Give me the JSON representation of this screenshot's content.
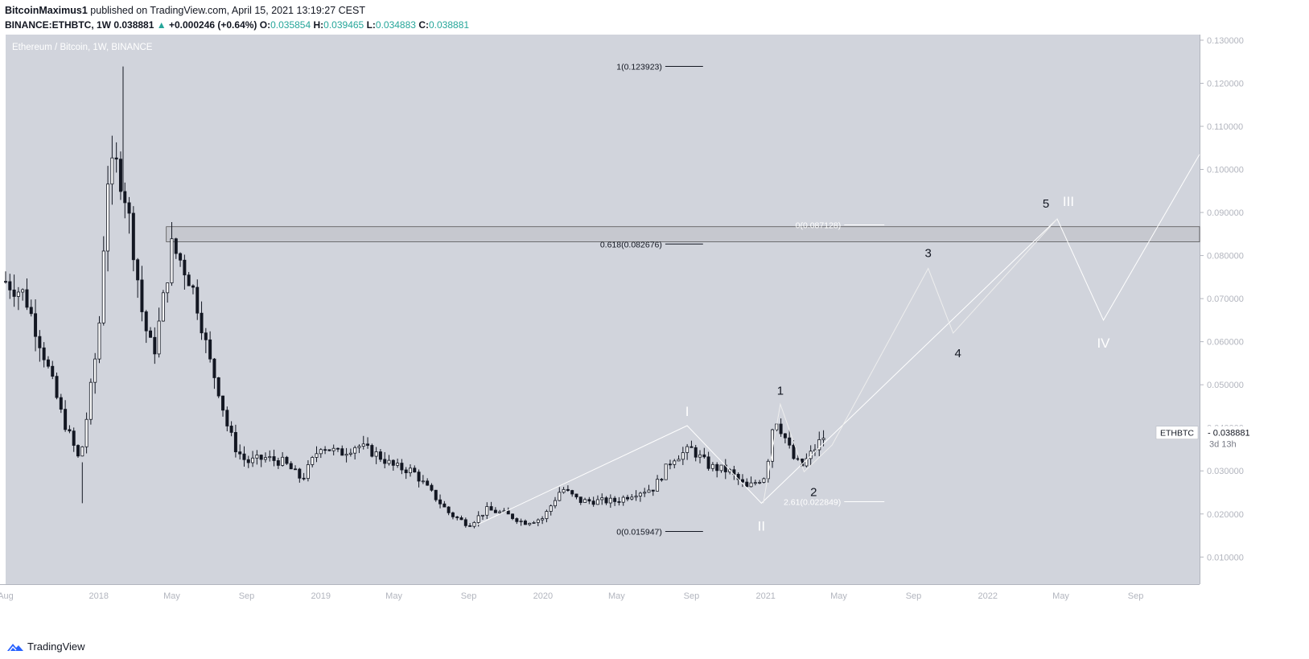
{
  "header": {
    "author": "BitcoinMaximus1",
    "published_text": "published on TradingView.com, April 15, 2021 13:19:27 CEST",
    "symbol": "BINANCE:ETHBTC, 1W",
    "last": "0.038881",
    "change_arrow": "▲",
    "change": "+0.000246 (+0.64%)",
    "o_label": "O:",
    "o_value": "0.035854",
    "h_label": "H:",
    "h_value": "0.039465",
    "l_label": "L:",
    "l_value": "0.034883",
    "c_label": "C:",
    "c_value": "0.038881"
  },
  "footer": {
    "brand": "TradingView"
  },
  "colors": {
    "plot_bg": "#d1d4dc",
    "candle": "#131722",
    "wave_line": "#ffffff",
    "zone_fill": "#c4c6cc",
    "up_text": "#26a69a"
  },
  "chart_data": {
    "type": "candlestick",
    "title": "Ethereum / Bitcoin, 1W, BINANCE",
    "y_unit": "BTC",
    "ylim": [
      0.0037,
      0.1313
    ],
    "xlim": [
      "2017-08-01",
      "2022-12-15"
    ],
    "y_ticks": [
      "0.010000",
      "0.020000",
      "0.030000",
      "0.040000",
      "0.050000",
      "0.060000",
      "0.070000",
      "0.080000",
      "0.090000",
      "0.100000",
      "0.110000",
      "0.120000",
      "0.130000"
    ],
    "x_ticks": [
      {
        "label": "Aug",
        "date": "2017-08-01"
      },
      {
        "label": "2018",
        "date": "2018-01-01"
      },
      {
        "label": "May",
        "date": "2018-05-01"
      },
      {
        "label": "Sep",
        "date": "2018-09-01"
      },
      {
        "label": "2019",
        "date": "2019-01-01"
      },
      {
        "label": "May",
        "date": "2019-05-01"
      },
      {
        "label": "Sep",
        "date": "2019-09-01"
      },
      {
        "label": "2020",
        "date": "2020-01-01"
      },
      {
        "label": "May",
        "date": "2020-05-01"
      },
      {
        "label": "Sep",
        "date": "2020-09-01"
      },
      {
        "label": "2021",
        "date": "2021-01-01"
      },
      {
        "label": "May",
        "date": "2021-05-01"
      },
      {
        "label": "Sep",
        "date": "2021-09-01"
      },
      {
        "label": "2022",
        "date": "2022-01-01"
      },
      {
        "label": "May",
        "date": "2022-05-01"
      },
      {
        "label": "Sep",
        "date": "2022-09-01"
      }
    ],
    "closes_anchor": [
      [
        "2017-08-01",
        0.074
      ],
      [
        "2017-09-01",
        0.071
      ],
      [
        "2017-10-01",
        0.058
      ],
      [
        "2017-11-01",
        0.043
      ],
      [
        "2017-12-01",
        0.032
      ],
      [
        "2017-12-15",
        0.045
      ],
      [
        "2018-01-01",
        0.062
      ],
      [
        "2018-01-15",
        0.098
      ],
      [
        "2018-02-01",
        0.101
      ],
      [
        "2018-02-15",
        0.093
      ],
      [
        "2018-03-01",
        0.08
      ],
      [
        "2018-03-15",
        0.065
      ],
      [
        "2018-04-01",
        0.057
      ],
      [
        "2018-04-15",
        0.068
      ],
      [
        "2018-05-01",
        0.082
      ],
      [
        "2018-05-15",
        0.079
      ],
      [
        "2018-06-01",
        0.074
      ],
      [
        "2018-06-15",
        0.067
      ],
      [
        "2018-07-01",
        0.056
      ],
      [
        "2018-07-15",
        0.05
      ],
      [
        "2018-08-01",
        0.04
      ],
      [
        "2018-08-15",
        0.035
      ],
      [
        "2018-09-01",
        0.032
      ],
      [
        "2018-10-01",
        0.033
      ],
      [
        "2018-11-01",
        0.032
      ],
      [
        "2018-12-01",
        0.028
      ],
      [
        "2019-01-01",
        0.036
      ],
      [
        "2019-02-01",
        0.034
      ],
      [
        "2019-03-01",
        0.036
      ],
      [
        "2019-04-01",
        0.034
      ],
      [
        "2019-05-01",
        0.031
      ],
      [
        "2019-06-01",
        0.03
      ],
      [
        "2019-07-01",
        0.025
      ],
      [
        "2019-08-01",
        0.02
      ],
      [
        "2019-09-01",
        0.0175
      ],
      [
        "2019-10-01",
        0.021
      ],
      [
        "2019-11-01",
        0.02
      ],
      [
        "2019-12-01",
        0.018
      ],
      [
        "2020-01-01",
        0.019
      ],
      [
        "2020-02-01",
        0.026
      ],
      [
        "2020-03-01",
        0.023
      ],
      [
        "2020-04-01",
        0.023
      ],
      [
        "2020-05-01",
        0.023
      ],
      [
        "2020-06-01",
        0.025
      ],
      [
        "2020-07-01",
        0.026
      ],
      [
        "2020-08-01",
        0.033
      ],
      [
        "2020-09-01",
        0.035
      ],
      [
        "2020-10-01",
        0.031
      ],
      [
        "2020-11-01",
        0.03
      ],
      [
        "2020-12-01",
        0.026
      ],
      [
        "2021-01-01",
        0.029
      ],
      [
        "2021-01-15",
        0.043
      ],
      [
        "2021-02-01",
        0.038
      ],
      [
        "2021-02-15",
        0.033
      ],
      [
        "2021-03-01",
        0.031
      ],
      [
        "2021-04-01",
        0.037
      ],
      [
        "2021-04-12",
        0.038881
      ]
    ],
    "range_zone": {
      "from": "2018-04-22",
      "to": "2022-12-15",
      "low": 0.0832,
      "high": 0.0867
    },
    "fib_levels": [
      {
        "label": "1(0.123923)",
        "value": 0.123923
      },
      {
        "label": "0.618(0.082676)",
        "value": 0.082676
      },
      {
        "label": "0(0.015947)",
        "value": 0.015947
      },
      {
        "label": "0(0.087128)",
        "value": 0.087128
      },
      {
        "label": "2.61(0.022849)",
        "value": 0.022849
      }
    ],
    "wave_path_major": [
      [
        "2019-09-15",
        0.0175
      ],
      [
        "2020-08-25",
        0.0405
      ],
      [
        "2020-12-25",
        0.0225
      ],
      [
        "2022-04-25",
        0.0885
      ],
      [
        "2022-07-10",
        0.065
      ],
      [
        "2022-12-15",
        0.1035
      ]
    ],
    "wave_path_minor": [
      [
        "2020-12-28",
        0.0225
      ],
      [
        "2021-01-25",
        0.0455
      ],
      [
        "2021-03-05",
        0.0298
      ],
      [
        "2021-04-20",
        0.036
      ],
      [
        "2021-09-25",
        0.077
      ],
      [
        "2021-11-05",
        0.062
      ],
      [
        "2022-04-25",
        0.0885
      ]
    ],
    "wave_labels_major": [
      {
        "label": "I",
        "date": "2020-08-25",
        "value": 0.0405
      },
      {
        "label": "II",
        "date": "2020-12-25",
        "value": 0.0225
      },
      {
        "label": "III",
        "date": "2022-04-25",
        "value": 0.0885
      },
      {
        "label": "IV",
        "date": "2022-07-10",
        "value": 0.065
      }
    ],
    "wave_labels_minor": [
      {
        "label": "1",
        "date": "2021-01-25",
        "value": 0.0455
      },
      {
        "label": "2",
        "date": "2021-03-05",
        "value": 0.0298
      },
      {
        "label": "3",
        "date": "2021-09-25",
        "value": 0.077
      },
      {
        "label": "4",
        "date": "2021-11-05",
        "value": 0.062
      },
      {
        "label": "5",
        "date": "2022-04-25",
        "value": 0.0885
      }
    ],
    "last_price_tag": {
      "symbol": "ETHBTC",
      "value": "0.038881",
      "countdown": "3d 13h"
    }
  }
}
